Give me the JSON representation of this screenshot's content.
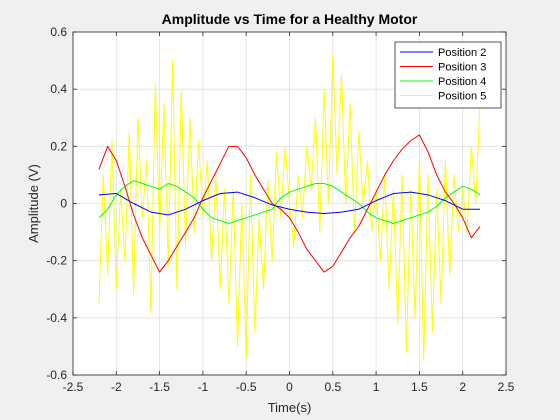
{
  "chart_data": {
    "type": "line",
    "title": "Amplitude vs Time for a Healthy Motor",
    "xlabel": "Time(s)",
    "ylabel": "Amplitude (V)",
    "xlim": [
      -2.5,
      2.5
    ],
    "ylim": [
      -0.6,
      0.6
    ],
    "xticks": [
      -2.5,
      -2,
      -1.5,
      -1,
      -0.5,
      0,
      0.5,
      1,
      1.5,
      2,
      2.5
    ],
    "xtick_labels": [
      "-2.5",
      "-2",
      "-1.5",
      "-1",
      "-0.5",
      "0",
      "0.5",
      "1",
      "1.5",
      "2",
      "2.5"
    ],
    "yticks": [
      -0.6,
      -0.4,
      -0.2,
      0,
      0.2,
      0.4,
      0.6
    ],
    "ytick_labels": [
      "-0.6",
      "-0.4",
      "-0.2",
      "0",
      "0.2",
      "0.4",
      "0.6"
    ],
    "grid": true,
    "legend_position": "top-right",
    "series": [
      {
        "name": "Position 2",
        "color": "#0000ff",
        "x": [
          -2.2,
          -2.0,
          -1.8,
          -1.6,
          -1.4,
          -1.2,
          -1.0,
          -0.8,
          -0.6,
          -0.4,
          -0.2,
          0.0,
          0.2,
          0.4,
          0.6,
          0.8,
          1.0,
          1.2,
          1.4,
          1.6,
          1.8,
          2.0,
          2.2
        ],
        "y": [
          0.03,
          0.035,
          0.0,
          -0.03,
          -0.04,
          -0.02,
          0.01,
          0.035,
          0.04,
          0.02,
          -0.005,
          -0.02,
          -0.03,
          -0.035,
          -0.03,
          -0.02,
          0.01,
          0.035,
          0.04,
          0.03,
          0.01,
          -0.02,
          -0.02
        ]
      },
      {
        "name": "Position 3",
        "color": "#ff0000",
        "x": [
          -2.2,
          -2.1,
          -2.0,
          -1.9,
          -1.8,
          -1.7,
          -1.6,
          -1.5,
          -1.4,
          -1.3,
          -1.2,
          -1.1,
          -1.0,
          -0.9,
          -0.8,
          -0.7,
          -0.6,
          -0.5,
          -0.4,
          -0.3,
          -0.2,
          -0.1,
          0.0,
          0.1,
          0.2,
          0.3,
          0.4,
          0.5,
          0.6,
          0.7,
          0.8,
          0.9,
          1.0,
          1.1,
          1.2,
          1.3,
          1.4,
          1.5,
          1.6,
          1.7,
          1.8,
          1.9,
          2.0,
          2.1,
          2.2
        ],
        "y": [
          0.12,
          0.2,
          0.15,
          0.06,
          -0.04,
          -0.12,
          -0.18,
          -0.24,
          -0.2,
          -0.15,
          -0.1,
          -0.05,
          0.02,
          0.08,
          0.14,
          0.2,
          0.2,
          0.16,
          0.1,
          0.05,
          0.0,
          -0.02,
          -0.05,
          -0.1,
          -0.16,
          -0.2,
          -0.24,
          -0.22,
          -0.17,
          -0.12,
          -0.08,
          -0.02,
          0.04,
          0.1,
          0.15,
          0.19,
          0.22,
          0.24,
          0.18,
          0.1,
          0.04,
          0.0,
          -0.05,
          -0.12,
          -0.08
        ]
      },
      {
        "name": "Position 4",
        "color": "#00ff00",
        "x": [
          -2.2,
          -2.1,
          -2.0,
          -1.9,
          -1.8,
          -1.7,
          -1.6,
          -1.5,
          -1.4,
          -1.3,
          -1.2,
          -1.1,
          -1.0,
          -0.9,
          -0.8,
          -0.7,
          -0.6,
          -0.5,
          -0.4,
          -0.3,
          -0.2,
          -0.1,
          0.0,
          0.1,
          0.2,
          0.3,
          0.4,
          0.5,
          0.6,
          0.7,
          0.8,
          0.9,
          1.0,
          1.1,
          1.2,
          1.3,
          1.4,
          1.5,
          1.6,
          1.7,
          1.8,
          1.9,
          2.0,
          2.1,
          2.2
        ],
        "y": [
          -0.05,
          -0.02,
          0.03,
          0.06,
          0.08,
          0.07,
          0.06,
          0.05,
          0.07,
          0.06,
          0.04,
          0.02,
          -0.02,
          -0.05,
          -0.06,
          -0.07,
          -0.06,
          -0.05,
          -0.04,
          -0.03,
          -0.02,
          0.02,
          0.04,
          0.05,
          0.06,
          0.07,
          0.07,
          0.06,
          0.04,
          0.02,
          0.0,
          -0.03,
          -0.05,
          -0.06,
          -0.07,
          -0.06,
          -0.05,
          -0.04,
          -0.03,
          -0.01,
          0.02,
          0.04,
          0.06,
          0.05,
          0.03
        ]
      },
      {
        "name": "Position 5",
        "color": "#ffff00",
        "x": [
          -2.2,
          -2.15,
          -2.1,
          -2.05,
          -2.0,
          -1.95,
          -1.9,
          -1.85,
          -1.8,
          -1.75,
          -1.7,
          -1.65,
          -1.6,
          -1.55,
          -1.5,
          -1.45,
          -1.4,
          -1.35,
          -1.3,
          -1.25,
          -1.2,
          -1.15,
          -1.1,
          -1.05,
          -1.0,
          -0.95,
          -0.9,
          -0.85,
          -0.8,
          -0.75,
          -0.7,
          -0.65,
          -0.6,
          -0.55,
          -0.5,
          -0.45,
          -0.4,
          -0.35,
          -0.3,
          -0.25,
          -0.2,
          -0.15,
          -0.1,
          -0.05,
          0.0,
          0.05,
          0.1,
          0.15,
          0.2,
          0.25,
          0.3,
          0.35,
          0.4,
          0.45,
          0.5,
          0.55,
          0.6,
          0.65,
          0.7,
          0.75,
          0.8,
          0.85,
          0.9,
          0.95,
          1.0,
          1.05,
          1.1,
          1.15,
          1.2,
          1.25,
          1.3,
          1.35,
          1.4,
          1.45,
          1.5,
          1.55,
          1.6,
          1.65,
          1.7,
          1.75,
          1.8,
          1.85,
          1.9,
          1.95,
          2.0,
          2.05,
          2.1,
          2.15,
          2.2
        ],
        "y": [
          -0.35,
          0.1,
          -0.25,
          0.22,
          -0.3,
          0.05,
          -0.2,
          0.25,
          -0.32,
          0.3,
          -0.05,
          0.15,
          -0.38,
          0.42,
          -0.1,
          0.35,
          -0.22,
          0.5,
          -0.3,
          0.4,
          -0.15,
          0.3,
          -0.1,
          0.22,
          -0.05,
          0.15,
          -0.2,
          0.1,
          -0.3,
          0.05,
          -0.35,
          0.05,
          -0.5,
          0.0,
          -0.54,
          0.1,
          -0.45,
          -0.05,
          -0.3,
          0.08,
          -0.2,
          0.18,
          -0.05,
          0.2,
          0.0,
          -0.15,
          0.1,
          -0.05,
          0.2,
          0.05,
          0.3,
          -0.1,
          0.4,
          0.0,
          0.52,
          0.1,
          0.45,
          0.0,
          0.35,
          -0.1,
          0.25,
          0.0,
          0.15,
          -0.1,
          0.05,
          -0.2,
          0.1,
          -0.3,
          0.05,
          -0.42,
          0.1,
          -0.52,
          0.05,
          -0.4,
          0.15,
          -0.55,
          0.1,
          -0.45,
          0.05,
          -0.35,
          0.15,
          -0.25,
          0.1,
          -0.1,
          0.05,
          -0.1,
          0.2,
          0.0,
          0.35
        ]
      }
    ]
  }
}
